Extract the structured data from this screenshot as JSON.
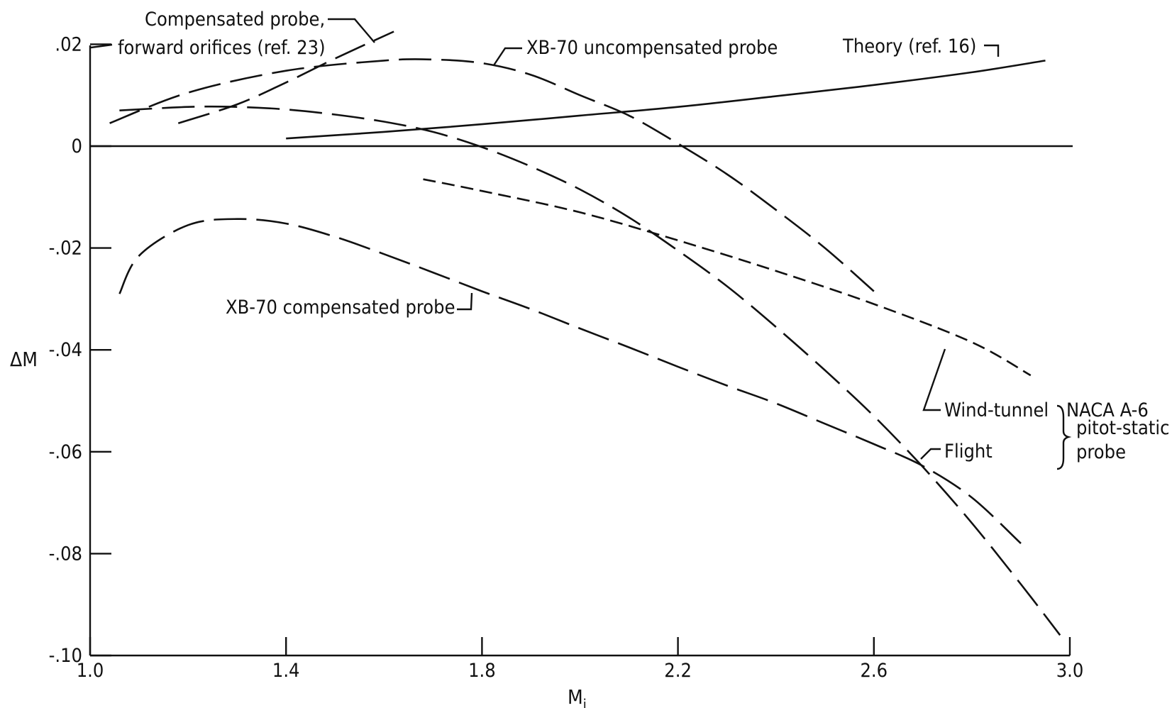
{
  "chart_data": {
    "type": "line",
    "xlabel": "M",
    "xlabel_sub": "i",
    "ylabel": "ΔM",
    "xlim": [
      1.0,
      3.0
    ],
    "ylim": [
      -0.1,
      0.02
    ],
    "x_ticks": [
      {
        "value": 1.0,
        "label": "1.0"
      },
      {
        "value": 1.4,
        "label": "1.4"
      },
      {
        "value": 1.8,
        "label": "1.8"
      },
      {
        "value": 2.2,
        "label": "2.2"
      },
      {
        "value": 2.6,
        "label": "2.6"
      },
      {
        "value": 3.0,
        "label": "3.0"
      }
    ],
    "y_ticks": [
      {
        "value": 0.02,
        "label": ".02"
      },
      {
        "value": 0.0,
        "label": "0"
      },
      {
        "value": -0.02,
        "label": "-.02"
      },
      {
        "value": -0.04,
        "label": "-.04"
      },
      {
        "value": -0.06,
        "label": "-.06"
      },
      {
        "value": -0.08,
        "label": "-.08"
      },
      {
        "value": -0.1,
        "label": "-.10"
      }
    ],
    "grid": false,
    "legend": "none",
    "series": [
      {
        "id": "compensated-forward",
        "style": "long-dash",
        "x": [
          1.18,
          1.3,
          1.4,
          1.5,
          1.62
        ],
        "y": [
          0.0045,
          0.0082,
          0.0125,
          0.0172,
          0.0225
        ]
      },
      {
        "id": "xb70-uncompensated",
        "style": "long-dash",
        "x": [
          1.04,
          1.2,
          1.4,
          1.6,
          1.7,
          1.8,
          1.9,
          2.0,
          2.1,
          2.2,
          2.3,
          2.4,
          2.5,
          2.6
        ],
        "y": [
          0.0045,
          0.0105,
          0.0148,
          0.0168,
          0.017,
          0.0163,
          0.014,
          0.01,
          0.006,
          0.0005,
          -0.0055,
          -0.0125,
          -0.02,
          -0.0285
        ]
      },
      {
        "id": "theory",
        "style": "solid",
        "x": [
          1.4,
          1.6,
          1.8,
          2.0,
          2.2,
          2.4,
          2.6,
          2.8,
          2.95
        ],
        "y": [
          0.0015,
          0.0028,
          0.0043,
          0.006,
          0.0077,
          0.0098,
          0.012,
          0.0145,
          0.0168
        ]
      },
      {
        "id": "naca-flight",
        "style": "long-dash",
        "x": [
          1.06,
          1.2,
          1.3,
          1.4,
          1.5,
          1.6,
          1.7,
          1.8,
          1.9,
          2.0,
          2.1,
          2.2,
          2.3,
          2.4,
          2.5,
          2.6,
          2.7,
          2.8,
          2.9,
          2.98
        ],
        "y": [
          0.007,
          0.0077,
          0.0077,
          0.0072,
          0.0062,
          0.0048,
          0.0028,
          -0.0002,
          -0.004,
          -0.0085,
          -0.014,
          -0.0205,
          -0.0275,
          -0.0355,
          -0.044,
          -0.053,
          -0.063,
          -0.074,
          -0.086,
          -0.096
        ]
      },
      {
        "id": "naca-wind-tunnel",
        "style": "short-dash",
        "x": [
          1.68,
          1.8,
          2.0,
          2.2,
          2.4,
          2.6,
          2.8,
          2.92
        ],
        "y": [
          -0.0065,
          -0.0088,
          -0.013,
          -0.0185,
          -0.0245,
          -0.031,
          -0.0385,
          -0.045
        ]
      },
      {
        "id": "xb70-compensated",
        "style": "long-dash",
        "x": [
          1.06,
          1.1,
          1.2,
          1.3,
          1.4,
          1.5,
          1.6,
          1.7,
          1.8,
          1.9,
          2.0,
          2.1,
          2.2,
          2.3,
          2.4,
          2.5,
          2.6,
          2.7,
          2.8,
          2.9
        ],
        "y": [
          -0.029,
          -0.0215,
          -0.0155,
          -0.0143,
          -0.0152,
          -0.0178,
          -0.0212,
          -0.0248,
          -0.0285,
          -0.032,
          -0.0358,
          -0.0395,
          -0.0433,
          -0.047,
          -0.0505,
          -0.0545,
          -0.0585,
          -0.0628,
          -0.069,
          -0.078
        ]
      }
    ],
    "annotations": {
      "compensated_forward_line1": "Compensated probe,",
      "compensated_forward_line2": "forward orifices (ref. 23)",
      "xb70_uncompensated": "XB-70 uncompensated probe",
      "theory": "Theory (ref. 16)",
      "xb70_compensated": "XB-70 compensated probe",
      "wind_tunnel": "Wind-tunnel",
      "flight": "Flight",
      "naca_line1": "NACA A-6",
      "naca_line2": "pitot-static",
      "naca_line3": "probe"
    }
  }
}
